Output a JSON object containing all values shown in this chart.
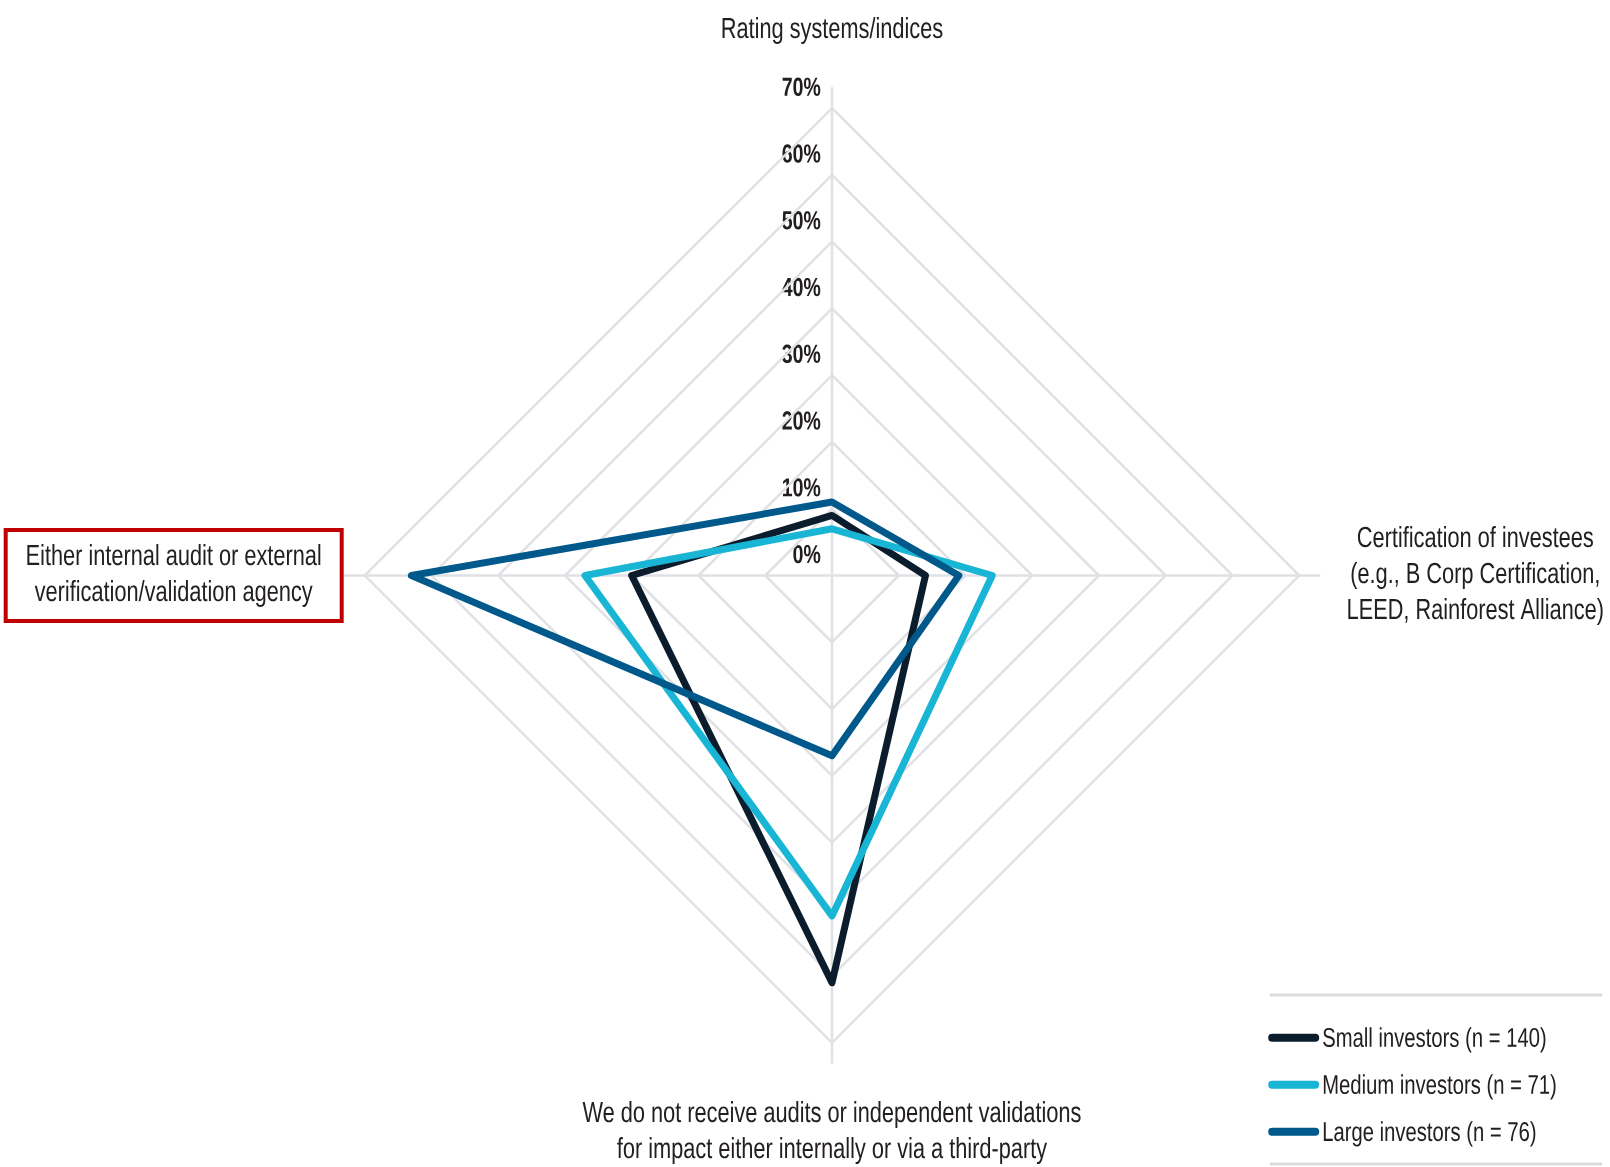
{
  "chart_data": {
    "type": "radar",
    "categories": [
      "Rating systems/indices",
      "Certification of investees (e.g., B Corp Certification, LEED, Rainforest Alliance)",
      "We do not receive audits or independent validations for impact either internally or via a third-party",
      "Either internal audit or external verification/validation agency"
    ],
    "series": [
      {
        "name": "Small investors (n = 140)",
        "color": "#0b1c2c",
        "values": [
          9,
          14,
          61,
          30
        ]
      },
      {
        "name": "Medium investors (n = 71)",
        "color": "#19b5d4",
        "values": [
          7,
          24,
          51,
          37
        ]
      },
      {
        "name": "Large investors (n = 76)",
        "color": "#00588b",
        "values": [
          11,
          19,
          27,
          63
        ]
      }
    ],
    "ylim": [
      0,
      70
    ],
    "yticks": [
      {
        "value": 0,
        "label": "0%"
      },
      {
        "value": 10,
        "label": "10%"
      },
      {
        "value": 20,
        "label": "20%"
      },
      {
        "value": 30,
        "label": "30%"
      },
      {
        "value": 40,
        "label": "40%"
      },
      {
        "value": 50,
        "label": "50%"
      },
      {
        "value": 60,
        "label": "60%"
      },
      {
        "value": 70,
        "label": "70%"
      }
    ],
    "grid": true,
    "legend": "bottom right"
  }
}
